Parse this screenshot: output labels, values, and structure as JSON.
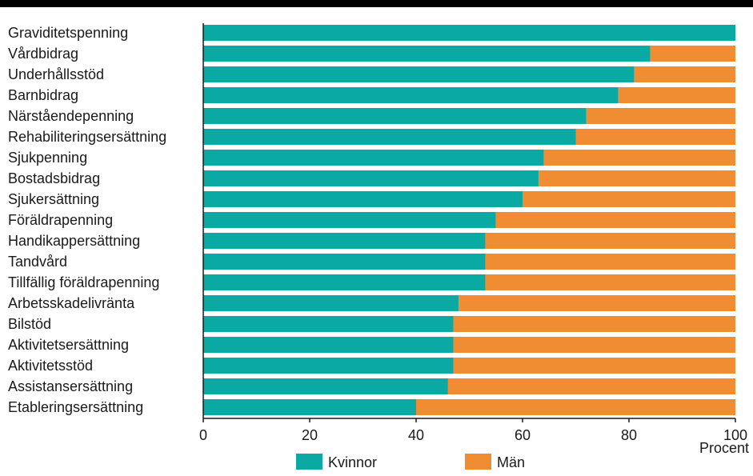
{
  "chart_data": {
    "type": "bar",
    "orientation": "horizontal",
    "stacked": true,
    "categories": [
      "Graviditetspenning",
      "Vårdbidrag",
      "Underhållsstöd",
      "Barnbidrag",
      "Närståendepenning",
      "Rehabiliteringsersättning",
      "Sjukpenning",
      "Bostadsbidrag",
      "Sjukersättning",
      "Föräldrapenning",
      "Handikappersättning",
      "Tandvård",
      "Tillfällig föräldrapenning",
      "Arbetsskadelivränta",
      "Bilstöd",
      "Aktivitetsersättning",
      "Aktivitetsstöd",
      "Assistansersättning",
      "Etableringsersättning"
    ],
    "series": [
      {
        "name": "Kvinnor",
        "color": "#0aa9a4",
        "values": [
          100,
          84,
          81,
          78,
          72,
          70,
          64,
          63,
          60,
          55,
          53,
          53,
          53,
          48,
          47,
          47,
          47,
          46,
          40
        ]
      },
      {
        "name": "Män",
        "color": "#f08c32",
        "values": [
          0,
          16,
          19,
          22,
          28,
          30,
          36,
          37,
          40,
          45,
          47,
          47,
          47,
          52,
          53,
          53,
          53,
          54,
          60
        ]
      }
    ],
    "xlim": [
      0,
      100
    ],
    "xticks": [
      "0",
      "20",
      "40",
      "60",
      "80",
      "100"
    ],
    "xlabel": "Procent",
    "legend_position": "bottom",
    "grid": false
  }
}
